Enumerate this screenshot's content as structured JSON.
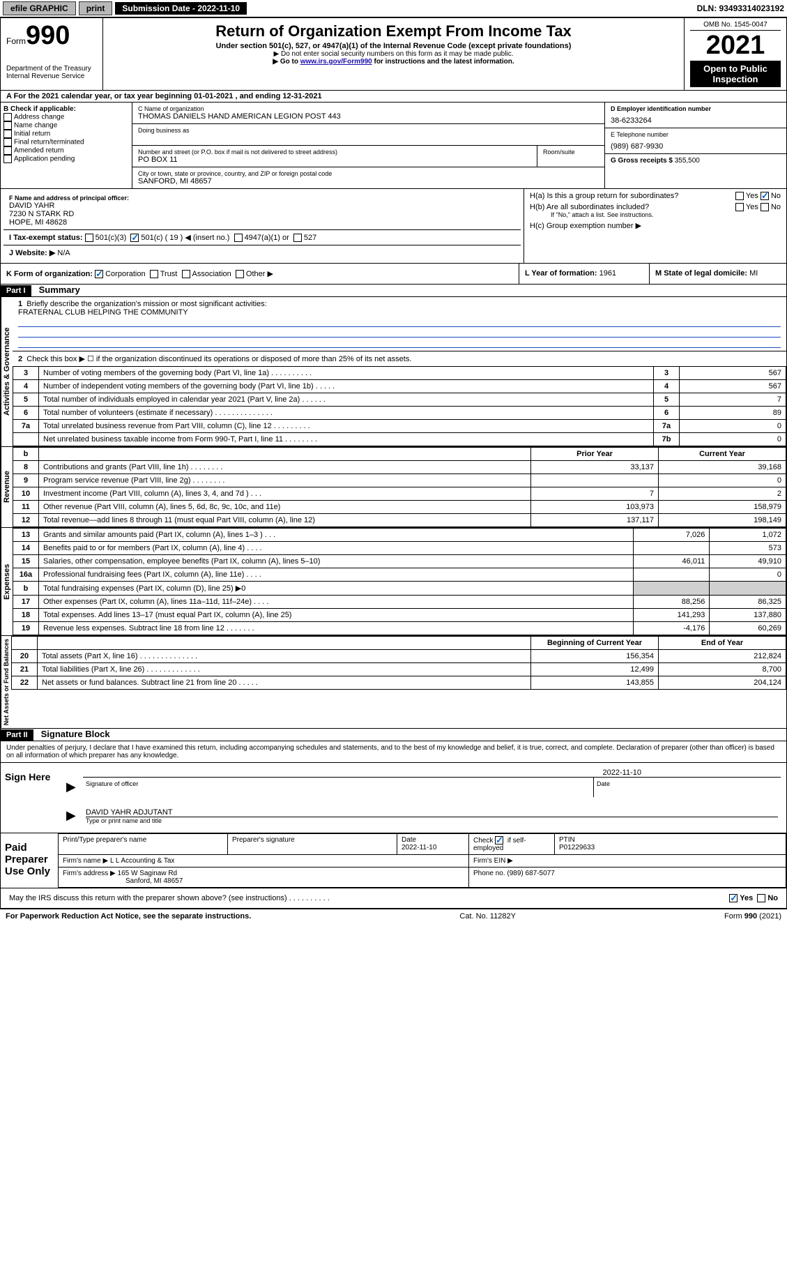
{
  "topbar": {
    "efile": "efile GRAPHIC",
    "print": "print",
    "submission": "Submission Date - 2022-11-10",
    "dln": "DLN: 93493314023192"
  },
  "header": {
    "form_label": "Form",
    "form_num": "990",
    "dept": "Department of the Treasury",
    "irs": "Internal Revenue Service",
    "title": "Return of Organization Exempt From Income Tax",
    "sub": "Under section 501(c), 527, or 4947(a)(1) of the Internal Revenue Code (except private foundations)",
    "hint1": "▶ Do not enter social security numbers on this form as it may be made public.",
    "hint2_pre": "▶ Go to ",
    "hint2_link": "www.irs.gov/Form990",
    "hint2_post": " for instructions and the latest information.",
    "omb": "OMB No. 1545-0047",
    "year": "2021",
    "open": "Open to Public Inspection"
  },
  "line_a": "A For the 2021 calendar year, or tax year beginning 01-01-2021  , and ending 12-31-2021",
  "b": {
    "label": "B Check if applicable:",
    "items": [
      "Address change",
      "Name change",
      "Initial return",
      "Final return/terminated",
      "Amended return",
      "Application pending"
    ]
  },
  "c": {
    "name_label": "C Name of organization",
    "name": "THOMAS DANIELS HAND AMERICAN LEGION POST 443",
    "dba_label": "Doing business as",
    "addr_label": "Number and street (or P.O. box if mail is not delivered to street address)",
    "room_label": "Room/suite",
    "addr": "PO BOX 11",
    "city_label": "City or town, state or province, country, and ZIP or foreign postal code",
    "city": "SANFORD, MI  48657"
  },
  "d": {
    "label": "D Employer identification number",
    "val": "38-6233264"
  },
  "e": {
    "label": "E Telephone number",
    "val": "(989) 687-9930"
  },
  "g": {
    "label": "G Gross receipts $",
    "val": "355,500"
  },
  "f": {
    "label": "F Name and address of principal officer:",
    "name": "DAVID YAHR",
    "addr1": "7230 N STARK RD",
    "addr2": "HOPE, MI  48628"
  },
  "h": {
    "a": "H(a)  Is this a group return for subordinates?",
    "b": "H(b)  Are all subordinates included?",
    "b_note": "If \"No,\" attach a list. See instructions.",
    "c": "H(c)  Group exemption number ▶",
    "yes": "Yes",
    "no": "No"
  },
  "i": {
    "label": "I   Tax-exempt status:",
    "opts": [
      "501(c)(3)",
      "501(c) ( 19 ) ◀ (insert no.)",
      "4947(a)(1) or",
      "527"
    ]
  },
  "j": {
    "label": "J   Website: ▶",
    "val": "N/A"
  },
  "k": {
    "label": "K Form of organization:",
    "opts": [
      "Corporation",
      "Trust",
      "Association",
      "Other ▶"
    ]
  },
  "l": {
    "label": "L Year of formation:",
    "val": "1961"
  },
  "m": {
    "label": "M State of legal domicile:",
    "val": "MI"
  },
  "part1": {
    "label": "Part I",
    "title": "Summary"
  },
  "summary": {
    "q1": "Briefly describe the organization's mission or most significant activities:",
    "q1val": "FRATERNAL CLUB HELPING THE COMMUNITY",
    "q2": "Check this box ▶ ☐  if the organization discontinued its operations or disposed of more than 25% of its net assets."
  },
  "vert": {
    "gov": "Activities & Governance",
    "rev": "Revenue",
    "exp": "Expenses",
    "net": "Net Assets or Fund Balances"
  },
  "gov_rows": [
    {
      "n": "3",
      "d": "Number of voting members of the governing body (Part VI, line 1a)  .   .   .   .   .   .   .   .   .   .",
      "box": "3",
      "v": "567"
    },
    {
      "n": "4",
      "d": "Number of independent voting members of the governing body (Part VI, line 1b)  .   .   .   .   .",
      "box": "4",
      "v": "567"
    },
    {
      "n": "5",
      "d": "Total number of individuals employed in calendar year 2021 (Part V, line 2a)  .   .   .   .   .   .",
      "box": "5",
      "v": "7"
    },
    {
      "n": "6",
      "d": "Total number of volunteers (estimate if necessary)  .   .   .   .   .   .   .   .   .   .   .   .   .   .",
      "box": "6",
      "v": "89"
    },
    {
      "n": "7a",
      "d": "Total unrelated business revenue from Part VIII, column (C), line 12  .   .   .   .   .   .   .   .   .",
      "box": "7a",
      "v": "0"
    },
    {
      "n": "",
      "d": "Net unrelated business taxable income from Form 990-T, Part I, line 11  .   .   .   .   .   .   .   .",
      "box": "7b",
      "v": "0"
    }
  ],
  "two_col_header": {
    "b": "b",
    "prior": "Prior Year",
    "curr": "Current Year"
  },
  "rev_rows": [
    {
      "n": "8",
      "d": "Contributions and grants (Part VIII, line 1h)   .   .   .   .   .   .   .   .",
      "p": "33,137",
      "c": "39,168"
    },
    {
      "n": "9",
      "d": "Program service revenue (Part VIII, line 2g)   .   .   .   .   .   .   .   .",
      "p": "",
      "c": "0"
    },
    {
      "n": "10",
      "d": "Investment income (Part VIII, column (A), lines 3, 4, and 7d )   .   .   .",
      "p": "7",
      "c": "2"
    },
    {
      "n": "11",
      "d": "Other revenue (Part VIII, column (A), lines 5, 6d, 8c, 9c, 10c, and 11e)",
      "p": "103,973",
      "c": "158,979"
    },
    {
      "n": "12",
      "d": "Total revenue—add lines 8 through 11 (must equal Part VIII, column (A), line 12)",
      "p": "137,117",
      "c": "198,149"
    }
  ],
  "exp_rows": [
    {
      "n": "13",
      "d": "Grants and similar amounts paid (Part IX, column (A), lines 1–3 )   .   .   .",
      "p": "7,026",
      "c": "1,072"
    },
    {
      "n": "14",
      "d": "Benefits paid to or for members (Part IX, column (A), line 4)   .   .   .   .",
      "p": "",
      "c": "573"
    },
    {
      "n": "15",
      "d": "Salaries, other compensation, employee benefits (Part IX, column (A), lines 5–10)",
      "p": "46,011",
      "c": "49,910"
    },
    {
      "n": "16a",
      "d": "Professional fundraising fees (Part IX, column (A), line 11e)   .   .   .   .",
      "p": "",
      "c": "0"
    },
    {
      "n": "b",
      "d": "Total fundraising expenses (Part IX, column (D), line 25) ▶0",
      "p": "SHADE",
      "c": "SHADE"
    },
    {
      "n": "17",
      "d": "Other expenses (Part IX, column (A), lines 11a–11d, 11f–24e)   .   .   .   .",
      "p": "88,256",
      "c": "86,325"
    },
    {
      "n": "18",
      "d": "Total expenses. Add lines 13–17 (must equal Part IX, column (A), line 25)",
      "p": "141,293",
      "c": "137,880"
    },
    {
      "n": "19",
      "d": "Revenue less expenses. Subtract line 18 from line 12   .   .   .   .   .   .   .",
      "p": "-4,176",
      "c": "60,269"
    }
  ],
  "net_header": {
    "beg": "Beginning of Current Year",
    "end": "End of Year"
  },
  "net_rows": [
    {
      "n": "20",
      "d": "Total assets (Part X, line 16)   .   .   .   .   .   .   .   .   .   .   .   .   .   .",
      "p": "156,354",
      "c": "212,824"
    },
    {
      "n": "21",
      "d": "Total liabilities (Part X, line 26)   .   .   .   .   .   .   .   .   .   .   .   .   .",
      "p": "12,499",
      "c": "8,700"
    },
    {
      "n": "22",
      "d": "Net assets or fund balances. Subtract line 21 from line 20   .   .   .   .   .",
      "p": "143,855",
      "c": "204,124"
    }
  ],
  "part2": {
    "label": "Part II",
    "title": "Signature Block"
  },
  "perjury": "Under penalties of perjury, I declare that I have examined this return, including accompanying schedules and statements, and to the best of my knowledge and belief, it is true, correct, and complete. Declaration of preparer (other than officer) is based on all information of which preparer has any knowledge.",
  "sign": {
    "here": "Sign Here",
    "sig_label": "Signature of officer",
    "date_label": "Date",
    "date": "2022-11-10",
    "name": "DAVID YAHR ADJUTANT",
    "name_label": "Type or print name and title"
  },
  "paid": {
    "label": "Paid Preparer Use Only",
    "h1": "Print/Type preparer's name",
    "h2": "Preparer's signature",
    "h3": "Date",
    "h3v": "2022-11-10",
    "h4": "Check ☑ if self-employed",
    "h5": "PTIN",
    "h5v": "P01229633",
    "firm_name_l": "Firm's name    ▶",
    "firm_name": "L L Accounting & Tax",
    "firm_ein_l": "Firm's EIN ▶",
    "firm_addr_l": "Firm's address ▶",
    "firm_addr": "165 W Saginaw Rd",
    "firm_addr2": "Sanford, MI  48657",
    "phone_l": "Phone no.",
    "phone": "(989) 687-5077"
  },
  "may_discuss": "May the IRS discuss this return with the preparer shown above? (see instructions)   .    .    .    .    .    .    .    .    .    .",
  "footer": {
    "l": "For Paperwork Reduction Act Notice, see the separate instructions.",
    "m": "Cat. No. 11282Y",
    "r": "Form 990 (2021)"
  }
}
